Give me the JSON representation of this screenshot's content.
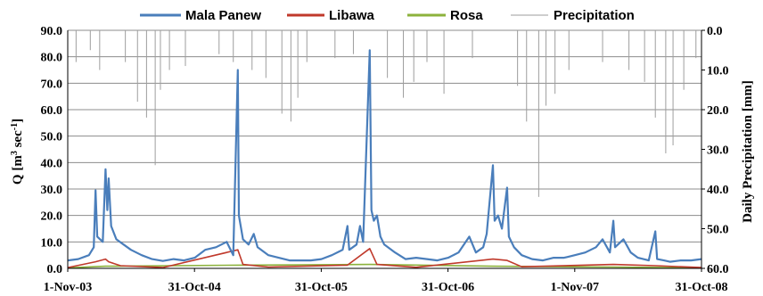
{
  "chart_data": {
    "type": "line",
    "title": "",
    "legend": {
      "placement": "top",
      "entries": [
        "Mala Panew",
        "Libawa",
        "Rosa",
        "Precipitation"
      ]
    },
    "axes": {
      "x": {
        "tick_labels": [
          "1-Nov-03",
          "31-Oct-04",
          "31-Oct-05",
          "31-Oct-06",
          "1-Nov-07",
          "31-Oct-08"
        ],
        "range": [
          "2003-11-01",
          "2008-10-31"
        ]
      },
      "y_left": {
        "label_main": "Q [m",
        "label_sup": "3",
        "label_rest": " sec",
        "label_sup2": "-1",
        "label_end": "]",
        "range": [
          0,
          90
        ],
        "tick_labels": [
          "0.0",
          "10.0",
          "20.0",
          "30.0",
          "40.0",
          "50.0",
          "60.0",
          "70.0",
          "80.0",
          "90.0"
        ]
      },
      "y_right": {
        "label": "Daily Precipitation [mm]",
        "range": [
          0,
          60
        ],
        "inverted": true,
        "tick_labels": [
          "0.0",
          "10.0",
          "20.0",
          "30.0",
          "40.0",
          "50.0",
          "60.0"
        ]
      }
    },
    "grid": "horizontal",
    "series": [
      {
        "name": "Mala Panew",
        "axis": "left",
        "color": "#4a7ebb",
        "points": [
          [
            "2003-11-01",
            3.0
          ],
          [
            "2003-12-01",
            3.5
          ],
          [
            "2004-01-01",
            5.0
          ],
          [
            "2004-01-15",
            8.0
          ],
          [
            "2004-01-20",
            29.5
          ],
          [
            "2004-01-25",
            12.0
          ],
          [
            "2004-02-10",
            10.0
          ],
          [
            "2004-02-18",
            37.5
          ],
          [
            "2004-02-23",
            22.0
          ],
          [
            "2004-02-27",
            34.0
          ],
          [
            "2004-03-05",
            16.0
          ],
          [
            "2004-03-20",
            11.0
          ],
          [
            "2004-04-10",
            9.0
          ],
          [
            "2004-05-01",
            7.0
          ],
          [
            "2004-06-01",
            5.0
          ],
          [
            "2004-07-01",
            3.5
          ],
          [
            "2004-08-01",
            2.8
          ],
          [
            "2004-09-01",
            3.5
          ],
          [
            "2004-10-01",
            3.0
          ],
          [
            "2004-11-01",
            4.0
          ],
          [
            "2004-12-01",
            7.0
          ],
          [
            "2005-01-01",
            8.0
          ],
          [
            "2005-02-01",
            10.0
          ],
          [
            "2005-02-20",
            5.0
          ],
          [
            "2005-03-05",
            75.0
          ],
          [
            "2005-03-08",
            20.0
          ],
          [
            "2005-03-20",
            11.0
          ],
          [
            "2005-04-05",
            9.0
          ],
          [
            "2005-04-20",
            13.0
          ],
          [
            "2005-05-01",
            8.0
          ],
          [
            "2005-06-01",
            5.0
          ],
          [
            "2005-07-01",
            4.0
          ],
          [
            "2005-08-01",
            3.0
          ],
          [
            "2005-09-01",
            3.0
          ],
          [
            "2005-10-01",
            3.0
          ],
          [
            "2005-11-01",
            3.5
          ],
          [
            "2005-12-01",
            5.0
          ],
          [
            "2006-01-01",
            7.0
          ],
          [
            "2006-01-15",
            16.0
          ],
          [
            "2006-01-20",
            7.0
          ],
          [
            "2006-02-10",
            9.0
          ],
          [
            "2006-02-20",
            16.0
          ],
          [
            "2006-03-01",
            10.0
          ],
          [
            "2006-03-20",
            82.5
          ],
          [
            "2006-03-25",
            22.0
          ],
          [
            "2006-04-01",
            18.0
          ],
          [
            "2006-04-10",
            20.0
          ],
          [
            "2006-04-20",
            12.0
          ],
          [
            "2006-05-01",
            9.0
          ],
          [
            "2006-06-01",
            6.0
          ],
          [
            "2006-07-01",
            3.5
          ],
          [
            "2006-08-01",
            4.0
          ],
          [
            "2006-09-01",
            3.5
          ],
          [
            "2006-10-01",
            3.0
          ],
          [
            "2006-11-01",
            4.0
          ],
          [
            "2006-12-01",
            6.0
          ],
          [
            "2007-01-01",
            12.0
          ],
          [
            "2007-01-20",
            6.0
          ],
          [
            "2007-02-10",
            8.0
          ],
          [
            "2007-02-20",
            13.0
          ],
          [
            "2007-03-10",
            39.0
          ],
          [
            "2007-03-15",
            18.0
          ],
          [
            "2007-03-25",
            20.0
          ],
          [
            "2007-04-05",
            15.0
          ],
          [
            "2007-04-20",
            30.5
          ],
          [
            "2007-04-25",
            12.0
          ],
          [
            "2007-05-10",
            8.0
          ],
          [
            "2007-06-01",
            5.0
          ],
          [
            "2007-07-01",
            3.5
          ],
          [
            "2007-08-01",
            3.0
          ],
          [
            "2007-09-01",
            4.0
          ],
          [
            "2007-10-01",
            4.0
          ],
          [
            "2007-11-01",
            5.0
          ],
          [
            "2007-12-01",
            6.0
          ],
          [
            "2008-01-01",
            8.0
          ],
          [
            "2008-01-20",
            11.0
          ],
          [
            "2008-02-10",
            6.0
          ],
          [
            "2008-02-20",
            18.0
          ],
          [
            "2008-02-25",
            8.0
          ],
          [
            "2008-03-20",
            11.0
          ],
          [
            "2008-04-10",
            6.0
          ],
          [
            "2008-05-01",
            4.0
          ],
          [
            "2008-06-01",
            3.0
          ],
          [
            "2008-06-20",
            14.0
          ],
          [
            "2008-06-25",
            3.5
          ],
          [
            "2008-07-15",
            3.0
          ],
          [
            "2008-08-01",
            2.5
          ],
          [
            "2008-09-01",
            3.0
          ],
          [
            "2008-10-01",
            3.0
          ],
          [
            "2008-10-31",
            3.5
          ]
        ]
      },
      {
        "name": "Libawa",
        "axis": "left",
        "color": "#c0392b",
        "points": [
          [
            "2003-11-01",
            0.3
          ],
          [
            "2004-01-20",
            2.5
          ],
          [
            "2004-02-18",
            3.5
          ],
          [
            "2004-02-27",
            2.5
          ],
          [
            "2004-04-01",
            1.0
          ],
          [
            "2004-08-01",
            0.3
          ],
          [
            "2005-03-05",
            7.0
          ],
          [
            "2005-03-20",
            1.5
          ],
          [
            "2005-06-01",
            0.5
          ],
          [
            "2006-01-15",
            1.2
          ],
          [
            "2006-03-20",
            7.5
          ],
          [
            "2006-04-10",
            1.5
          ],
          [
            "2006-08-01",
            0.4
          ],
          [
            "2007-03-10",
            3.5
          ],
          [
            "2007-04-20",
            3.0
          ],
          [
            "2007-06-01",
            0.6
          ],
          [
            "2008-02-20",
            1.5
          ],
          [
            "2008-06-20",
            1.0
          ],
          [
            "2008-10-31",
            0.3
          ]
        ]
      },
      {
        "name": "Rosa",
        "axis": "left",
        "color": "#8cb23c",
        "points": [
          [
            "2003-11-01",
            0.2
          ],
          [
            "2004-02-18",
            0.8
          ],
          [
            "2005-03-05",
            1.2
          ],
          [
            "2006-03-20",
            1.5
          ],
          [
            "2007-03-10",
            0.8
          ],
          [
            "2008-02-20",
            0.5
          ],
          [
            "2008-10-31",
            0.2
          ]
        ]
      },
      {
        "name": "Precipitation",
        "axis": "right",
        "color": "#9e9e9e",
        "style": "bars from top",
        "points": [
          [
            "2003-11-25",
            8.0
          ],
          [
            "2004-01-05",
            5.0
          ],
          [
            "2004-02-01",
            10.0
          ],
          [
            "2004-04-15",
            8.0
          ],
          [
            "2004-05-20",
            18.0
          ],
          [
            "2004-06-15",
            22.0
          ],
          [
            "2004-07-10",
            34.0
          ],
          [
            "2004-07-25",
            15.0
          ],
          [
            "2004-08-20",
            10.0
          ],
          [
            "2004-10-05",
            9.0
          ],
          [
            "2005-01-10",
            6.0
          ],
          [
            "2005-02-20",
            8.0
          ],
          [
            "2005-04-15",
            10.0
          ],
          [
            "2005-05-25",
            12.0
          ],
          [
            "2005-07-10",
            21.0
          ],
          [
            "2005-08-05",
            23.0
          ],
          [
            "2005-08-25",
            17.0
          ],
          [
            "2005-09-20",
            8.0
          ],
          [
            "2005-12-10",
            7.0
          ],
          [
            "2006-02-01",
            6.0
          ],
          [
            "2006-05-10",
            12.0
          ],
          [
            "2006-06-25",
            17.0
          ],
          [
            "2006-07-25",
            13.0
          ],
          [
            "2006-09-01",
            8.0
          ],
          [
            "2006-10-20",
            16.0
          ],
          [
            "2007-01-10",
            7.0
          ],
          [
            "2007-05-20",
            14.0
          ],
          [
            "2007-06-15",
            23.0
          ],
          [
            "2007-07-20",
            42.0
          ],
          [
            "2007-08-10",
            19.0
          ],
          [
            "2007-09-05",
            16.0
          ],
          [
            "2007-10-15",
            10.0
          ],
          [
            "2008-01-20",
            8.0
          ],
          [
            "2008-04-05",
            10.0
          ],
          [
            "2008-05-20",
            13.0
          ],
          [
            "2008-06-20",
            22.0
          ],
          [
            "2008-07-20",
            31.0
          ],
          [
            "2008-08-10",
            29.0
          ],
          [
            "2008-09-10",
            15.0
          ],
          [
            "2008-10-15",
            7.0
          ]
        ]
      }
    ]
  }
}
